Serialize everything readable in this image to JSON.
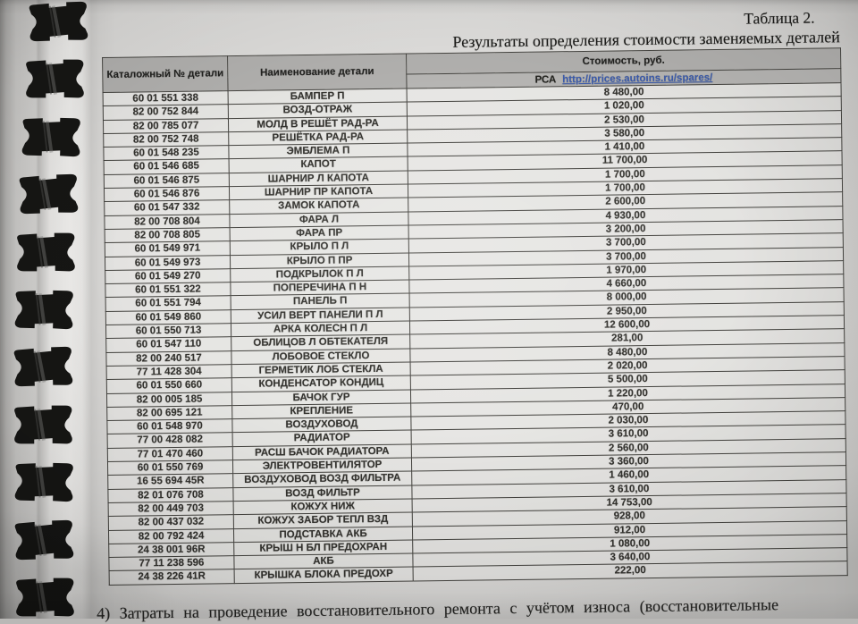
{
  "page": {
    "title": "Таблица 2.",
    "subtitle": "Результаты определения стоимости заменяемых деталей",
    "footnote": "4) Затраты на проведение восстановительного ремонта с учётом износа (восстановительные"
  },
  "table": {
    "headers": {
      "catalog": "Каталожный № детали",
      "name": "Наименование детали",
      "cost": "Стоимость, руб.",
      "source_label": "РСА",
      "source_url": "http://prices.autoins.ru/spares/"
    },
    "rows": [
      {
        "catalog": "60 01 551 338",
        "name": "БАМПЕР П",
        "price": "8 480,00"
      },
      {
        "catalog": "82 00 752 844",
        "name": "ВОЗД-ОТРАЖ",
        "price": "1 020,00"
      },
      {
        "catalog": "82 00 785 077",
        "name": "МОЛД В РЕШЁТ РАД-РА",
        "price": "2 530,00"
      },
      {
        "catalog": "82 00 752 748",
        "name": "РЕШЁТКА РАД-РА",
        "price": "3 580,00"
      },
      {
        "catalog": "60 01 548 235",
        "name": "ЭМБЛЕМА П",
        "price": "1 410,00"
      },
      {
        "catalog": "60 01 546 685",
        "name": "КАПОТ",
        "price": "11 700,00"
      },
      {
        "catalog": "60 01 546 875",
        "name": "ШАРНИР Л КАПОТА",
        "price": "1 700,00"
      },
      {
        "catalog": "60 01 546 876",
        "name": "ШАРНИР ПР КАПОТА",
        "price": "1 700,00"
      },
      {
        "catalog": "60 01 547 332",
        "name": "ЗАМОК КАПОТА",
        "price": "2 600,00"
      },
      {
        "catalog": "82 00 708 804",
        "name": "ФАРА Л",
        "price": "4 930,00"
      },
      {
        "catalog": "82 00 708 805",
        "name": "ФАРА ПР",
        "price": "3 200,00"
      },
      {
        "catalog": "60 01 549 971",
        "name": "КРЫЛО П Л",
        "price": "3 700,00"
      },
      {
        "catalog": "60 01 549 973",
        "name": "КРЫЛО П ПР",
        "price": "3 700,00"
      },
      {
        "catalog": "60 01 549 270",
        "name": "ПОДКРЫЛОК П Л",
        "price": "1 970,00"
      },
      {
        "catalog": "60 01 551 322",
        "name": "ПОПЕРЕЧИНА П Н",
        "price": "4 660,00"
      },
      {
        "catalog": "60 01 551 794",
        "name": "ПАНЕЛЬ П",
        "price": "8 000,00"
      },
      {
        "catalog": "60 01 549 860",
        "name": "УСИЛ ВЕРТ ПАНЕЛИ П Л",
        "price": "2 950,00"
      },
      {
        "catalog": "60 01 550 713",
        "name": "АРКА КОЛЕСН П Л",
        "price": "12 600,00"
      },
      {
        "catalog": "60 01 547 110",
        "name": "ОБЛИЦОВ Л ОБТЕКАТЕЛЯ",
        "price": "281,00"
      },
      {
        "catalog": "82 00 240 517",
        "name": "ЛОБОВОЕ СТЕКЛО",
        "price": "8 480,00"
      },
      {
        "catalog": "77 11 428 304",
        "name": "ГЕРМЕТИК ЛОБ СТЕКЛА",
        "price": "2 020,00"
      },
      {
        "catalog": "60 01 550 660",
        "name": "КОНДЕНСАТОР КОНДИЦ",
        "price": "5 500,00"
      },
      {
        "catalog": "82 00 005 185",
        "name": "БАЧОК  ГУР",
        "price": "1 220,00"
      },
      {
        "catalog": "82 00 695 121",
        "name": "КРЕПЛЕНИЕ",
        "price": "470,00"
      },
      {
        "catalog": "60 01 548 970",
        "name": "ВОЗДУХОВОД",
        "price": "2 030,00"
      },
      {
        "catalog": "77 00 428 082",
        "name": "РАДИАТОР",
        "price": "3 610,00"
      },
      {
        "catalog": "77 01 470 460",
        "name": "РАСШ БАЧОК РАДИАТОРА",
        "price": "2 560,00"
      },
      {
        "catalog": "60 01 550 769",
        "name": "ЭЛЕКТРОВЕНТИЛЯТОР",
        "price": "3 360,00"
      },
      {
        "catalog": "16 55 694 45R",
        "name": "ВОЗДУХОВОД ВОЗД ФИЛЬТРА",
        "price": "1 460,00"
      },
      {
        "catalog": "82 01 076 708",
        "name": "ВОЗД ФИЛЬТР",
        "price": "3 610,00"
      },
      {
        "catalog": "82 00 449 703",
        "name": "КОЖУХ  НИЖ",
        "price": "14 753,00"
      },
      {
        "catalog": "82 00 437 032",
        "name": "КОЖУХ ЗАБОР ТЕПЛ ВЗД",
        "price": "928,00"
      },
      {
        "catalog": "82 00 792 424",
        "name": "ПОДСТАВКА АКБ",
        "price": "912,00"
      },
      {
        "catalog": "24 38 001 96R",
        "name": "КРЫШ Н БЛ ПРЕДОХРАН",
        "price": "1 080,00"
      },
      {
        "catalog": "77 11 238 596",
        "name": "АКБ",
        "price": "3 640,00"
      },
      {
        "catalog": "24 38 226 41R",
        "name": "КРЫШКА БЛОКА ПРЕДОХР",
        "price": "222,00"
      }
    ]
  },
  "binding": {
    "ring_count": 11
  },
  "colors": {
    "paper": "#dcdbd9",
    "header_gray": "#b1b0ae",
    "link_blue": "#3c5cad",
    "border_dark": "#44433f",
    "ring_black": "#161614"
  }
}
